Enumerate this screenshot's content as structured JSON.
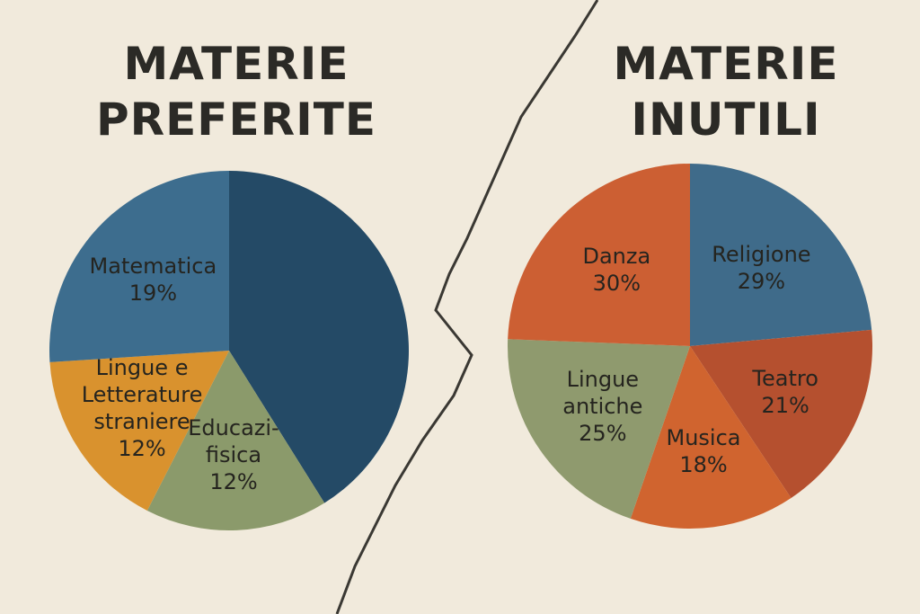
{
  "chart_data": [
    {
      "type": "pie",
      "title": "MATERIE\nPREFERITE",
      "categories": [
        null,
        "Educazi-\nfisica",
        "Lingue e\nLetterature\nstraniere",
        "Matematica"
      ],
      "values": [
        30,
        12,
        12,
        19
      ],
      "value_labels": [
        null,
        "12%",
        "12%",
        "19%"
      ],
      "colors": [
        "#244a66",
        "#8b9a6b",
        "#d9922e",
        "#3d6d8e"
      ]
    },
    {
      "type": "pie",
      "title": "MATERIE\nINUTILI",
      "categories": [
        "Religione",
        "Teatro",
        "Musica",
        "Lingue\nantiche",
        "Danza"
      ],
      "values": [
        29,
        21,
        18,
        25,
        30
      ],
      "value_labels": [
        "29%",
        "21%",
        "18%",
        "25%",
        "30%"
      ],
      "colors": [
        "#3f6b8a",
        "#b5502f",
        "#d0642f",
        "#8f9a6e",
        "#cc5f33"
      ]
    }
  ]
}
